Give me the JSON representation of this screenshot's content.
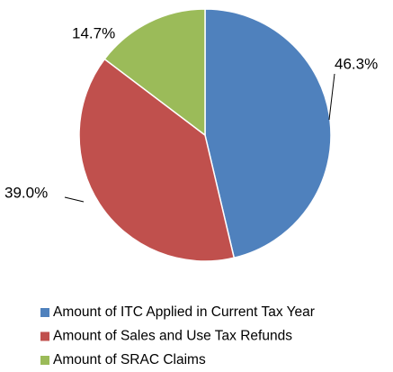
{
  "chart_data": {
    "type": "pie",
    "categories": [
      "Amount of ITC Applied in Current Tax Year",
      "Amount of Sales and Use Tax Refunds",
      "Amount of SRAC Claims"
    ],
    "values": [
      46.3,
      39.0,
      14.7
    ],
    "value_labels": [
      "46.3%",
      "39.0%",
      "14.7%"
    ],
    "colors": [
      "#4f81bd",
      "#c0504d",
      "#9bbb59"
    ],
    "legend": "bottom"
  }
}
